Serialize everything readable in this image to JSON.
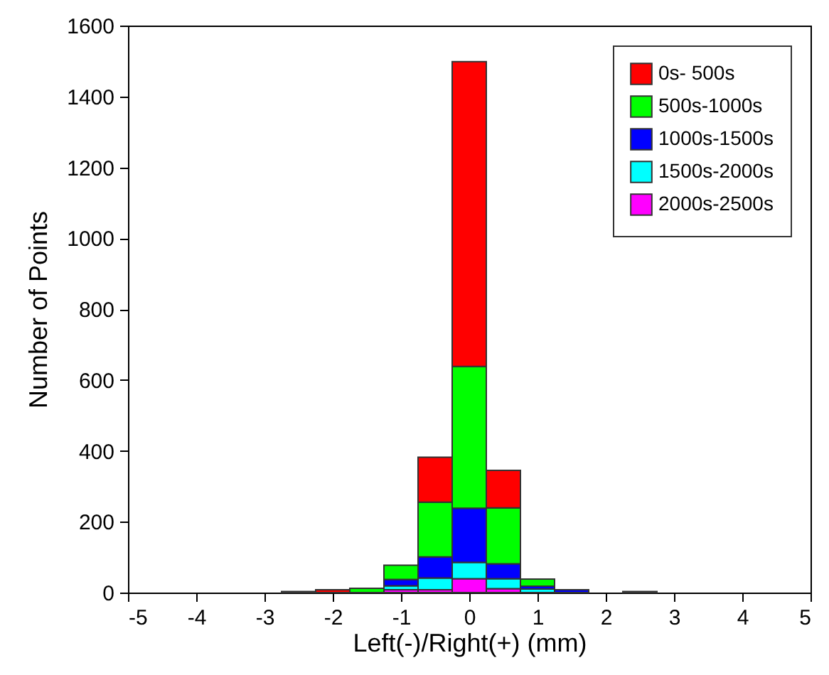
{
  "chart_data": {
    "type": "bar",
    "stacked": true,
    "xlabel": "Left(-)/Right(+) (mm)",
    "ylabel": "Number of Points",
    "x": [
      -2.5,
      -2,
      -1.5,
      -1,
      -0.5,
      0,
      0.5,
      1,
      1.5,
      2.5
    ],
    "series": [
      {
        "name": "2000s-2500s",
        "color": "#ff00ff",
        "values": [
          null,
          null,
          null,
          8,
          8,
          39,
          11,
          null,
          null,
          null
        ]
      },
      {
        "name": "1500s-2000s",
        "color": "#00ffff",
        "values": [
          null,
          null,
          null,
          11,
          33,
          46,
          28,
          10,
          null,
          null
        ]
      },
      {
        "name": "1000s-1500s",
        "color": "#0000ff",
        "values": [
          null,
          null,
          null,
          18,
          60,
          153,
          42,
          8,
          8,
          null
        ]
      },
      {
        "name": "500s-1000s",
        "color": "#00ff00",
        "values": [
          null,
          null,
          12,
          40,
          154,
          400,
          158,
          20,
          null,
          3
        ]
      },
      {
        "name": "0s-  500s",
        "color": "#ff0000",
        "values": [
          3,
          8,
          null,
          null,
          127,
          860,
          106,
          null,
          null,
          null
        ]
      }
    ],
    "xlim": [
      -5,
      5
    ],
    "xticks": [
      -5,
      -4,
      -3,
      -2,
      -1,
      0,
      1,
      2,
      3,
      4,
      5
    ],
    "ylim": [
      0,
      1600
    ],
    "yticks": [
      0,
      200,
      400,
      600,
      800,
      1000,
      1200,
      1400,
      1600
    ],
    "grid": false,
    "legend": "top right"
  }
}
